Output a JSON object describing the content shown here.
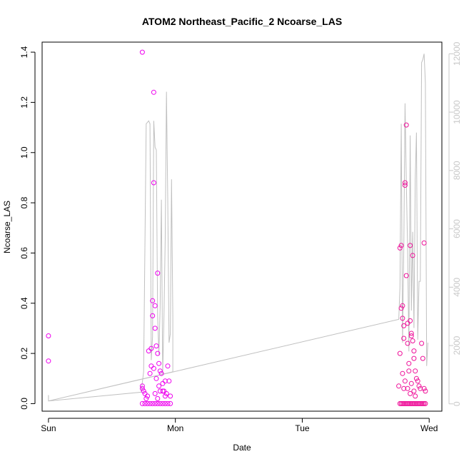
{
  "chart_data": {
    "type": "scatter",
    "title": "ATOM2 Northeast_Pacific_2 Ncoarse_LAS",
    "xlabel": "Date",
    "ylabel": "Ncoarse_LAS",
    "x_axis": {
      "range": [
        -0.05,
        3.1
      ],
      "ticks": [
        0,
        1,
        2,
        3
      ],
      "tick_labels": [
        "Sun",
        "Mon",
        "Tue",
        "Wed"
      ]
    },
    "y_axis": {
      "range": [
        -0.03,
        1.44
      ],
      "ticks": [
        0.0,
        0.2,
        0.4,
        0.6,
        0.8,
        1.0,
        1.2,
        1.4
      ],
      "tick_labels": [
        "0.0",
        "0.2",
        "0.4",
        "0.6",
        "0.8",
        "1.0",
        "1.2",
        "1.4"
      ]
    },
    "y2_axis": {
      "range": [
        -250,
        12400
      ],
      "ticks": [
        0,
        2000,
        4000,
        6000,
        8000,
        10000,
        12000
      ],
      "tick_labels": [
        "0",
        "2000",
        "4000",
        "6000",
        "8000",
        "10000",
        "12000"
      ],
      "color": "#c8c8c8"
    },
    "colors": {
      "line": "#c0c0c0",
      "points_early": "#ee00ee",
      "points_late": "#ee1199",
      "axis": "#000000"
    },
    "series": [
      {
        "style": "line",
        "axis": "right",
        "points": [
          [
            0.0,
            300
          ],
          [
            0.0,
            100
          ],
          [
            0.73,
            400
          ],
          [
            0.75,
            1100
          ],
          [
            0.77,
            9600
          ],
          [
            0.79,
            9700
          ],
          [
            0.8,
            9600
          ],
          [
            0.81,
            1500
          ],
          [
            0.82,
            2300
          ],
          [
            0.83,
            9700
          ],
          [
            0.84,
            8800
          ],
          [
            0.85,
            8700
          ],
          [
            0.86,
            3000
          ],
          [
            0.87,
            1700
          ],
          [
            0.88,
            3300
          ],
          [
            0.89,
            7000
          ],
          [
            0.9,
            1000
          ],
          [
            0.91,
            3000
          ],
          [
            0.92,
            5600
          ],
          [
            0.93,
            10700
          ],
          [
            0.94,
            7000
          ],
          [
            0.95,
            2100
          ],
          [
            0.96,
            2400
          ],
          [
            0.97,
            7700
          ],
          [
            0.98,
            3000
          ],
          [
            0.98,
            1100
          ],
          [
            0.0,
            100
          ],
          [
            2.76,
            2900
          ],
          [
            2.77,
            4000
          ],
          [
            2.78,
            9600
          ],
          [
            2.79,
            2100
          ],
          [
            2.8,
            5400
          ],
          [
            2.81,
            10300
          ],
          [
            2.82,
            7600
          ],
          [
            2.83,
            5300
          ],
          [
            2.84,
            1800
          ],
          [
            2.85,
            9200
          ],
          [
            2.86,
            3200
          ],
          [
            2.87,
            5900
          ],
          [
            2.88,
            2600
          ],
          [
            2.89,
            7700
          ],
          [
            2.9,
            9300
          ],
          [
            2.91,
            2200
          ],
          [
            2.92,
            4200
          ],
          [
            2.93,
            4200
          ],
          [
            2.94,
            11700
          ],
          [
            2.95,
            11800
          ],
          [
            2.96,
            12000
          ],
          [
            2.97,
            11000
          ],
          [
            2.98,
            1300
          ],
          [
            2.99,
            2100
          ]
        ]
      },
      {
        "name": "Mon",
        "style": "points",
        "color": "#ee00ee",
        "points": [
          [
            0.0,
            0.27
          ],
          [
            0.0,
            0.17
          ],
          [
            0.74,
            1.4
          ],
          [
            0.74,
            0.07
          ],
          [
            0.74,
            0.06
          ],
          [
            0.75,
            0.05
          ],
          [
            0.76,
            0.04
          ],
          [
            0.77,
            0.02
          ],
          [
            0.78,
            0.03
          ],
          [
            0.79,
            0.21
          ],
          [
            0.8,
            0.12
          ],
          [
            0.81,
            0.15
          ],
          [
            0.82,
            0.41
          ],
          [
            0.83,
            1.24
          ],
          [
            0.83,
            0.88
          ],
          [
            0.84,
            0.39
          ],
          [
            0.84,
            0.3
          ],
          [
            0.85,
            0.23
          ],
          [
            0.86,
            0.52
          ],
          [
            0.86,
            0.2
          ],
          [
            0.87,
            0.16
          ],
          [
            0.88,
            0.13
          ],
          [
            0.89,
            0.12
          ],
          [
            0.9,
            0.08
          ],
          [
            0.91,
            0.05
          ],
          [
            0.92,
            0.03
          ],
          [
            0.93,
            0.04
          ],
          [
            0.94,
            0.15
          ],
          [
            0.95,
            0.09
          ],
          [
            0.82,
            0.35
          ],
          [
            0.83,
            0.14
          ],
          [
            0.85,
            0.1
          ],
          [
            0.87,
            0.07
          ],
          [
            0.9,
            0.05
          ],
          [
            0.92,
            0.09
          ],
          [
            0.81,
            0.22
          ],
          [
            0.84,
            0.04
          ],
          [
            0.86,
            0.02
          ],
          [
            0.88,
            0.05
          ],
          [
            0.96,
            0.03
          ],
          [
            0.74,
            0.0
          ],
          [
            0.76,
            0.0
          ],
          [
            0.78,
            0.0
          ],
          [
            0.8,
            0.0
          ],
          [
            0.82,
            0.0
          ],
          [
            0.84,
            0.0
          ],
          [
            0.86,
            0.0
          ],
          [
            0.88,
            0.0
          ],
          [
            0.9,
            0.0
          ],
          [
            0.92,
            0.0
          ],
          [
            0.94,
            0.0
          ],
          [
            0.96,
            0.0
          ]
        ]
      },
      {
        "name": "Wed",
        "style": "points",
        "color": "#ee1199",
        "points": [
          [
            2.77,
            0.62
          ],
          [
            2.78,
            0.63
          ],
          [
            2.78,
            0.38
          ],
          [
            2.79,
            0.39
          ],
          [
            2.79,
            0.34
          ],
          [
            2.8,
            0.31
          ],
          [
            2.8,
            0.26
          ],
          [
            2.81,
            0.87
          ],
          [
            2.81,
            0.88
          ],
          [
            2.82,
            0.51
          ],
          [
            2.82,
            1.11
          ],
          [
            2.83,
            0.32
          ],
          [
            2.83,
            0.24
          ],
          [
            2.84,
            0.16
          ],
          [
            2.84,
            0.13
          ],
          [
            2.85,
            0.63
          ],
          [
            2.85,
            0.33
          ],
          [
            2.86,
            0.28
          ],
          [
            2.86,
            0.27
          ],
          [
            2.87,
            0.59
          ],
          [
            2.87,
            0.25
          ],
          [
            2.88,
            0.21
          ],
          [
            2.88,
            0.18
          ],
          [
            2.89,
            0.13
          ],
          [
            2.9,
            0.1
          ],
          [
            2.91,
            0.09
          ],
          [
            2.92,
            0.07
          ],
          [
            2.93,
            0.06
          ],
          [
            2.94,
            0.24
          ],
          [
            2.95,
            0.18
          ],
          [
            2.96,
            0.64
          ],
          [
            2.96,
            0.06
          ],
          [
            2.97,
            0.05
          ],
          [
            2.77,
            0.2
          ],
          [
            2.79,
            0.12
          ],
          [
            2.81,
            0.09
          ],
          [
            2.83,
            0.06
          ],
          [
            2.85,
            0.04
          ],
          [
            2.86,
            0.08
          ],
          [
            2.88,
            0.05
          ],
          [
            2.89,
            0.03
          ],
          [
            2.8,
            0.06
          ],
          [
            2.76,
            0.07
          ],
          [
            2.77,
            0.0
          ],
          [
            2.78,
            0.0
          ],
          [
            2.79,
            0.0
          ],
          [
            2.8,
            0.0
          ],
          [
            2.81,
            0.0
          ],
          [
            2.82,
            0.0
          ],
          [
            2.83,
            0.0
          ],
          [
            2.84,
            0.0
          ],
          [
            2.85,
            0.0
          ],
          [
            2.86,
            0.0
          ],
          [
            2.87,
            0.0
          ],
          [
            2.88,
            0.0
          ],
          [
            2.89,
            0.0
          ],
          [
            2.9,
            0.0
          ],
          [
            2.91,
            0.0
          ],
          [
            2.92,
            0.0
          ],
          [
            2.93,
            0.0
          ],
          [
            2.94,
            0.0
          ],
          [
            2.95,
            0.0
          ],
          [
            2.96,
            0.0
          ],
          [
            2.97,
            0.0
          ]
        ]
      }
    ]
  }
}
